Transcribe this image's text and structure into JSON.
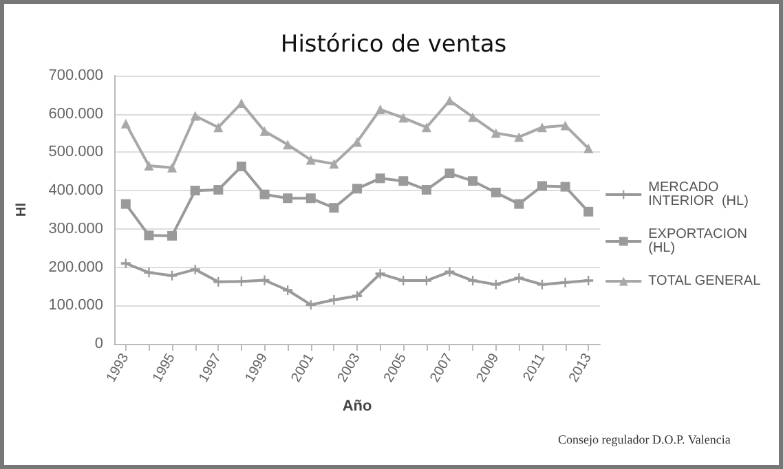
{
  "chart_data": {
    "type": "line",
    "title": "Histórico de ventas",
    "xlabel": "Año",
    "ylabel": "Hl",
    "categories": [
      "1993",
      null,
      "1995",
      null,
      "1997",
      null,
      "1999",
      null,
      "2001",
      null,
      "2003",
      null,
      "2005",
      null,
      "2007",
      null,
      "2009",
      null,
      "2011",
      null,
      "2013"
    ],
    "series": [
      {
        "name": "MERCADO INTERIOR  (HL)",
        "color": "#9a9a9a",
        "marker": "cross",
        "values": [
          210000,
          186000,
          178000,
          194000,
          162000,
          163000,
          166000,
          140000,
          102000,
          115000,
          125000,
          183000,
          165000,
          165000,
          188000,
          165000,
          155000,
          172000,
          155000,
          160000,
          165000
        ]
      },
      {
        "name": "EXPORTACION (HL)",
        "color": "#9a9a9a",
        "marker": "square",
        "values": [
          365000,
          283000,
          282000,
          400000,
          402000,
          463000,
          390000,
          380000,
          380000,
          355000,
          405000,
          432000,
          425000,
          402000,
          445000,
          425000,
          395000,
          365000,
          412000,
          410000,
          345000
        ]
      },
      {
        "name": "TOTAL GENERAL",
        "color": "#a8a8a8",
        "marker": "triangle",
        "values": [
          575000,
          465000,
          460000,
          595000,
          565000,
          628000,
          555000,
          520000,
          480000,
          470000,
          527000,
          612000,
          590000,
          565000,
          635000,
          592000,
          550000,
          540000,
          565000,
          570000,
          510000
        ]
      }
    ],
    "ylim": [
      0,
      700000
    ],
    "yticks": [
      0,
      {
        "value": 100000,
        "label": "100.000"
      },
      {
        "value": 200000,
        "label": "200.000"
      },
      {
        "value": 300000,
        "label": "300.000"
      },
      {
        "value": 400000,
        "label": "400.000"
      },
      {
        "value": 500000,
        "label": "500.000"
      },
      {
        "value": 600000,
        "label": "600.000"
      },
      {
        "value": 700000,
        "label": "700.000"
      }
    ],
    "grid": "y",
    "legend": "right",
    "line_style": "solid",
    "annotations": [
      "Consejo regulador D.O.P. Valencia"
    ]
  }
}
